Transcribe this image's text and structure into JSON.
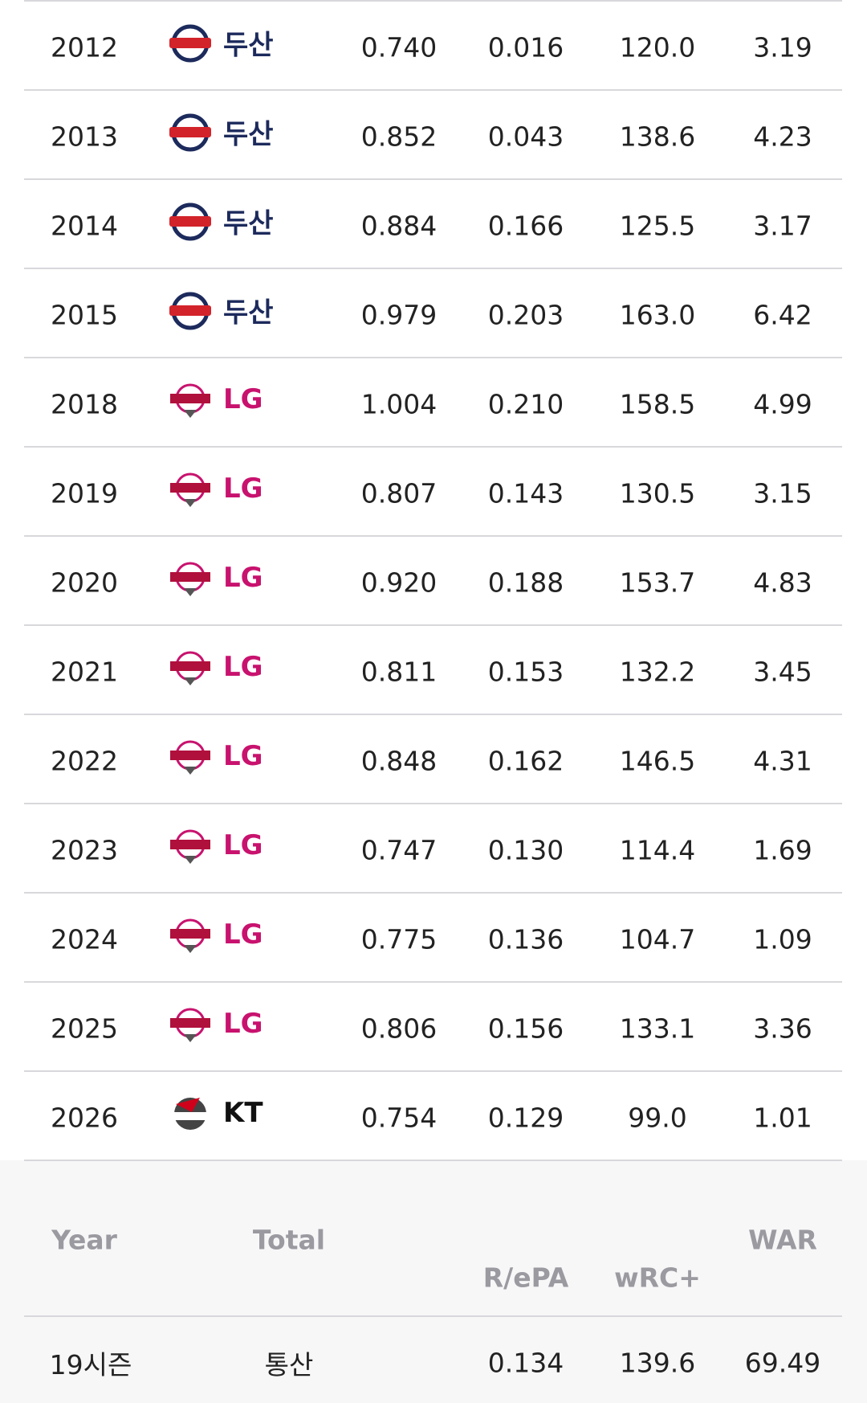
{
  "table": {
    "rows": [
      [
        "2012",
        "두산",
        "0.740",
        "0.016",
        "120.0",
        "3.19"
      ],
      [
        "2013",
        "두산",
        "0.852",
        "0.043",
        "138.6",
        "4.23"
      ],
      [
        "2014",
        "두산",
        "0.884",
        "0.166",
        "125.5",
        "3.17"
      ],
      [
        "2015",
        "두산",
        "0.979",
        "0.203",
        "163.0",
        "6.42"
      ],
      [
        "2018",
        "LG",
        "1.004",
        "0.210",
        "158.5",
        "4.99"
      ],
      [
        "2019",
        "LG",
        "0.807",
        "0.143",
        "130.5",
        "3.15"
      ],
      [
        "2020",
        "LG",
        "0.920",
        "0.188",
        "153.7",
        "4.83"
      ],
      [
        "2021",
        "LG",
        "0.811",
        "0.153",
        "132.2",
        "3.45"
      ],
      [
        "2022",
        "LG",
        "0.848",
        "0.162",
        "146.5",
        "4.31"
      ],
      [
        "2023",
        "LG",
        "0.747",
        "0.130",
        "114.4",
        "1.69"
      ],
      [
        "2024",
        "LG",
        "0.775",
        "0.136",
        "104.7",
        "1.09"
      ],
      [
        "2025",
        "LG",
        "0.806",
        "0.156",
        "133.1",
        "3.36"
      ],
      [
        "2026",
        "KT",
        "0.754",
        "0.129",
        "99.0",
        "1.01"
      ]
    ]
  },
  "footer": {
    "header": {
      "year": "Year",
      "total": "Total",
      "repa": "R/ePA",
      "wrc": "wRC+",
      "war": "WAR"
    },
    "row": {
      "seasons": "19시즌",
      "label": "통산",
      "repa": "0.134",
      "wrc": "139.6",
      "war": "69.49"
    }
  }
}
